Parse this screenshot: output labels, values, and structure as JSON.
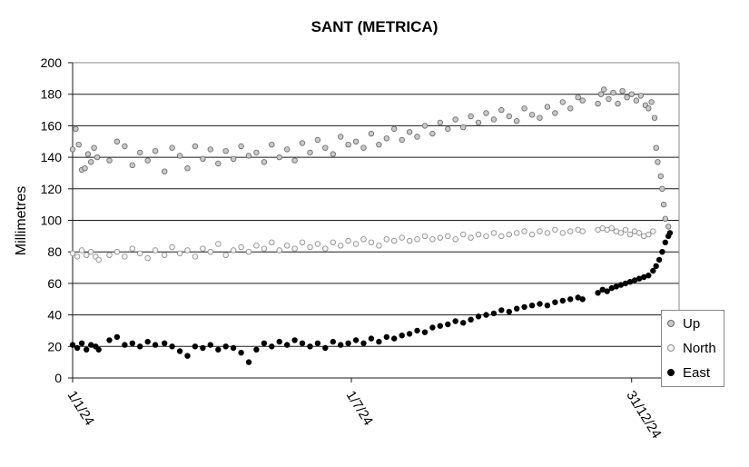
{
  "chart_data": {
    "type": "scatter",
    "title": "SANT (METRICA)",
    "xlabel": "",
    "ylabel": "Millimetres",
    "ylim": [
      0,
      200
    ],
    "yticks": [
      0,
      20,
      40,
      60,
      80,
      100,
      120,
      140,
      160,
      180,
      200
    ],
    "x_tick_labels": [
      "1/1/24",
      "1/7/24",
      "31/12/24"
    ],
    "x_tick_dates": [
      "2024-01-01",
      "2024-07-01",
      "2024-12-31"
    ],
    "xlim": [
      "2024-01-01",
      "2025-01-31"
    ],
    "grid": "horizontal",
    "legend_position": "bottom-right",
    "series": [
      {
        "name": "Up",
        "marker_fill": "#c8c8c8",
        "marker_stroke": "#666666",
        "points": [
          [
            "2024-01-01",
            145
          ],
          [
            "2024-01-03",
            158
          ],
          [
            "2024-01-05",
            148
          ],
          [
            "2024-01-07",
            132
          ],
          [
            "2024-01-09",
            133
          ],
          [
            "2024-01-11",
            142
          ],
          [
            "2024-01-13",
            137
          ],
          [
            "2024-01-15",
            146
          ],
          [
            "2024-01-17",
            140
          ],
          [
            "2024-01-25",
            138
          ],
          [
            "2024-01-30",
            150
          ],
          [
            "2024-02-04",
            147
          ],
          [
            "2024-02-09",
            135
          ],
          [
            "2024-02-14",
            143
          ],
          [
            "2024-02-19",
            138
          ],
          [
            "2024-02-24",
            144
          ],
          [
            "2024-03-01",
            131
          ],
          [
            "2024-03-06",
            146
          ],
          [
            "2024-03-11",
            141
          ],
          [
            "2024-03-16",
            133
          ],
          [
            "2024-03-21",
            147
          ],
          [
            "2024-03-26",
            139
          ],
          [
            "2024-03-31",
            145
          ],
          [
            "2024-04-05",
            136
          ],
          [
            "2024-04-10",
            144
          ],
          [
            "2024-04-15",
            139
          ],
          [
            "2024-04-20",
            147
          ],
          [
            "2024-04-25",
            141
          ],
          [
            "2024-04-30",
            143
          ],
          [
            "2024-05-05",
            137
          ],
          [
            "2024-05-10",
            148
          ],
          [
            "2024-05-15",
            140
          ],
          [
            "2024-05-20",
            145
          ],
          [
            "2024-05-25",
            138
          ],
          [
            "2024-05-30",
            149
          ],
          [
            "2024-06-04",
            143
          ],
          [
            "2024-06-09",
            151
          ],
          [
            "2024-06-14",
            146
          ],
          [
            "2024-06-19",
            142
          ],
          [
            "2024-06-24",
            153
          ],
          [
            "2024-06-29",
            148
          ],
          [
            "2024-07-04",
            150
          ],
          [
            "2024-07-09",
            146
          ],
          [
            "2024-07-14",
            155
          ],
          [
            "2024-07-19",
            148
          ],
          [
            "2024-07-24",
            152
          ],
          [
            "2024-07-29",
            158
          ],
          [
            "2024-08-03",
            151
          ],
          [
            "2024-08-08",
            156
          ],
          [
            "2024-08-13",
            153
          ],
          [
            "2024-08-18",
            160
          ],
          [
            "2024-08-23",
            155
          ],
          [
            "2024-08-28",
            162
          ],
          [
            "2024-09-02",
            158
          ],
          [
            "2024-09-07",
            164
          ],
          [
            "2024-09-12",
            159
          ],
          [
            "2024-09-17",
            166
          ],
          [
            "2024-09-22",
            162
          ],
          [
            "2024-09-27",
            168
          ],
          [
            "2024-10-02",
            164
          ],
          [
            "2024-10-07",
            170
          ],
          [
            "2024-10-12",
            166
          ],
          [
            "2024-10-17",
            163
          ],
          [
            "2024-10-22",
            171
          ],
          [
            "2024-10-27",
            167
          ],
          [
            "2024-11-01",
            165
          ],
          [
            "2024-11-06",
            172
          ],
          [
            "2024-11-11",
            168
          ],
          [
            "2024-11-16",
            175
          ],
          [
            "2024-11-21",
            171
          ],
          [
            "2024-11-26",
            178
          ],
          [
            "2024-11-29",
            176
          ],
          [
            "2024-12-09",
            174
          ],
          [
            "2024-12-11",
            180
          ],
          [
            "2024-12-13",
            183
          ],
          [
            "2024-12-16",
            177
          ],
          [
            "2024-12-19",
            181
          ],
          [
            "2024-12-22",
            174
          ],
          [
            "2024-12-25",
            182
          ],
          [
            "2024-12-28",
            178
          ],
          [
            "2024-12-31",
            180
          ],
          [
            "2025-01-03",
            176
          ],
          [
            "2025-01-06",
            179
          ],
          [
            "2025-01-09",
            173
          ],
          [
            "2025-01-11",
            171
          ],
          [
            "2025-01-13",
            175
          ],
          [
            "2025-01-15",
            165
          ],
          [
            "2025-01-16",
            146
          ],
          [
            "2025-01-17",
            137
          ],
          [
            "2025-01-19",
            128
          ],
          [
            "2025-01-20",
            120
          ],
          [
            "2025-01-21",
            110
          ],
          [
            "2025-01-22",
            101
          ],
          [
            "2025-01-24",
            96
          ]
        ]
      },
      {
        "name": "North",
        "marker_fill": "#f4f4f4",
        "marker_stroke": "#888888",
        "points": [
          [
            "2024-01-01",
            79
          ],
          [
            "2024-01-04",
            77
          ],
          [
            "2024-01-07",
            81
          ],
          [
            "2024-01-10",
            78
          ],
          [
            "2024-01-13",
            80
          ],
          [
            "2024-01-16",
            77
          ],
          [
            "2024-01-18",
            75
          ],
          [
            "2024-01-25",
            78
          ],
          [
            "2024-01-30",
            80
          ],
          [
            "2024-02-04",
            77
          ],
          [
            "2024-02-09",
            82
          ],
          [
            "2024-02-14",
            79
          ],
          [
            "2024-02-19",
            76
          ],
          [
            "2024-02-24",
            81
          ],
          [
            "2024-03-01",
            78
          ],
          [
            "2024-03-06",
            83
          ],
          [
            "2024-03-11",
            79
          ],
          [
            "2024-03-16",
            81
          ],
          [
            "2024-03-21",
            77
          ],
          [
            "2024-03-26",
            82
          ],
          [
            "2024-03-31",
            80
          ],
          [
            "2024-04-05",
            85
          ],
          [
            "2024-04-10",
            78
          ],
          [
            "2024-04-15",
            81
          ],
          [
            "2024-04-20",
            83
          ],
          [
            "2024-04-25",
            80
          ],
          [
            "2024-04-30",
            84
          ],
          [
            "2024-05-05",
            82
          ],
          [
            "2024-05-10",
            86
          ],
          [
            "2024-05-15",
            81
          ],
          [
            "2024-05-20",
            84
          ],
          [
            "2024-05-25",
            82
          ],
          [
            "2024-05-30",
            86
          ],
          [
            "2024-06-04",
            83
          ],
          [
            "2024-06-09",
            85
          ],
          [
            "2024-06-14",
            82
          ],
          [
            "2024-06-19",
            86
          ],
          [
            "2024-06-24",
            84
          ],
          [
            "2024-06-29",
            87
          ],
          [
            "2024-07-04",
            85
          ],
          [
            "2024-07-09",
            88
          ],
          [
            "2024-07-14",
            86
          ],
          [
            "2024-07-19",
            84
          ],
          [
            "2024-07-24",
            88
          ],
          [
            "2024-07-29",
            87
          ],
          [
            "2024-08-03",
            89
          ],
          [
            "2024-08-08",
            87
          ],
          [
            "2024-08-13",
            88
          ],
          [
            "2024-08-18",
            90
          ],
          [
            "2024-08-23",
            88
          ],
          [
            "2024-08-28",
            89
          ],
          [
            "2024-09-02",
            90
          ],
          [
            "2024-09-07",
            88
          ],
          [
            "2024-09-12",
            91
          ],
          [
            "2024-09-17",
            89
          ],
          [
            "2024-09-22",
            91
          ],
          [
            "2024-09-27",
            90
          ],
          [
            "2024-10-02",
            92
          ],
          [
            "2024-10-07",
            90
          ],
          [
            "2024-10-12",
            91
          ],
          [
            "2024-10-17",
            92
          ],
          [
            "2024-10-22",
            93
          ],
          [
            "2024-10-27",
            91
          ],
          [
            "2024-11-01",
            93
          ],
          [
            "2024-11-06",
            92
          ],
          [
            "2024-11-11",
            94
          ],
          [
            "2024-11-16",
            92
          ],
          [
            "2024-11-21",
            93
          ],
          [
            "2024-11-26",
            94
          ],
          [
            "2024-11-29",
            93
          ],
          [
            "2024-12-09",
            94
          ],
          [
            "2024-12-12",
            95
          ],
          [
            "2024-12-15",
            94
          ],
          [
            "2024-12-18",
            95
          ],
          [
            "2024-12-21",
            93
          ],
          [
            "2024-12-24",
            92
          ],
          [
            "2024-12-27",
            94
          ],
          [
            "2024-12-30",
            91
          ],
          [
            "2025-01-02",
            93
          ],
          [
            "2025-01-05",
            92
          ],
          [
            "2025-01-08",
            90
          ],
          [
            "2025-01-11",
            91
          ],
          [
            "2025-01-14",
            93
          ]
        ]
      },
      {
        "name": "East",
        "marker_fill": "#000000",
        "marker_stroke": "#000000",
        "points": [
          [
            "2024-01-01",
            21
          ],
          [
            "2024-01-04",
            19
          ],
          [
            "2024-01-07",
            22
          ],
          [
            "2024-01-10",
            18
          ],
          [
            "2024-01-13",
            21
          ],
          [
            "2024-01-16",
            20
          ],
          [
            "2024-01-18",
            18
          ],
          [
            "2024-01-25",
            24
          ],
          [
            "2024-01-30",
            26
          ],
          [
            "2024-02-04",
            21
          ],
          [
            "2024-02-09",
            22
          ],
          [
            "2024-02-14",
            20
          ],
          [
            "2024-02-19",
            23
          ],
          [
            "2024-02-24",
            21
          ],
          [
            "2024-03-01",
            22
          ],
          [
            "2024-03-06",
            20
          ],
          [
            "2024-03-11",
            17
          ],
          [
            "2024-03-16",
            14
          ],
          [
            "2024-03-21",
            20
          ],
          [
            "2024-03-26",
            19
          ],
          [
            "2024-03-31",
            21
          ],
          [
            "2024-04-05",
            18
          ],
          [
            "2024-04-10",
            20
          ],
          [
            "2024-04-15",
            19
          ],
          [
            "2024-04-20",
            16
          ],
          [
            "2024-04-25",
            10
          ],
          [
            "2024-04-30",
            18
          ],
          [
            "2024-05-05",
            22
          ],
          [
            "2024-05-10",
            20
          ],
          [
            "2024-05-15",
            23
          ],
          [
            "2024-05-20",
            21
          ],
          [
            "2024-05-25",
            24
          ],
          [
            "2024-05-30",
            22
          ],
          [
            "2024-06-04",
            20
          ],
          [
            "2024-06-09",
            22
          ],
          [
            "2024-06-14",
            19
          ],
          [
            "2024-06-19",
            23
          ],
          [
            "2024-06-24",
            21
          ],
          [
            "2024-06-29",
            22
          ],
          [
            "2024-07-04",
            24
          ],
          [
            "2024-07-09",
            22
          ],
          [
            "2024-07-14",
            25
          ],
          [
            "2024-07-19",
            23
          ],
          [
            "2024-07-24",
            26
          ],
          [
            "2024-07-29",
            25
          ],
          [
            "2024-08-03",
            27
          ],
          [
            "2024-08-08",
            28
          ],
          [
            "2024-08-13",
            30
          ],
          [
            "2024-08-18",
            29
          ],
          [
            "2024-08-23",
            32
          ],
          [
            "2024-08-28",
            33
          ],
          [
            "2024-09-02",
            34
          ],
          [
            "2024-09-07",
            36
          ],
          [
            "2024-09-12",
            35
          ],
          [
            "2024-09-17",
            37
          ],
          [
            "2024-09-22",
            39
          ],
          [
            "2024-09-27",
            40
          ],
          [
            "2024-10-02",
            41
          ],
          [
            "2024-10-07",
            43
          ],
          [
            "2024-10-12",
            42
          ],
          [
            "2024-10-17",
            44
          ],
          [
            "2024-10-22",
            45
          ],
          [
            "2024-10-27",
            46
          ],
          [
            "2024-11-01",
            47
          ],
          [
            "2024-11-06",
            46
          ],
          [
            "2024-11-11",
            48
          ],
          [
            "2024-11-16",
            49
          ],
          [
            "2024-11-21",
            50
          ],
          [
            "2024-11-26",
            51
          ],
          [
            "2024-11-29",
            50
          ],
          [
            "2024-12-09",
            54
          ],
          [
            "2024-12-12",
            56
          ],
          [
            "2024-12-15",
            55
          ],
          [
            "2024-12-18",
            57
          ],
          [
            "2024-12-21",
            58
          ],
          [
            "2024-12-24",
            59
          ],
          [
            "2024-12-27",
            60
          ],
          [
            "2024-12-30",
            61
          ],
          [
            "2025-01-02",
            62
          ],
          [
            "2025-01-05",
            63
          ],
          [
            "2025-01-08",
            64
          ],
          [
            "2025-01-11",
            65
          ],
          [
            "2025-01-14",
            68
          ],
          [
            "2025-01-16",
            71
          ],
          [
            "2025-01-18",
            75
          ],
          [
            "2025-01-20",
            80
          ],
          [
            "2025-01-22",
            86
          ],
          [
            "2025-01-24",
            90
          ],
          [
            "2025-01-25",
            92
          ]
        ]
      }
    ]
  }
}
